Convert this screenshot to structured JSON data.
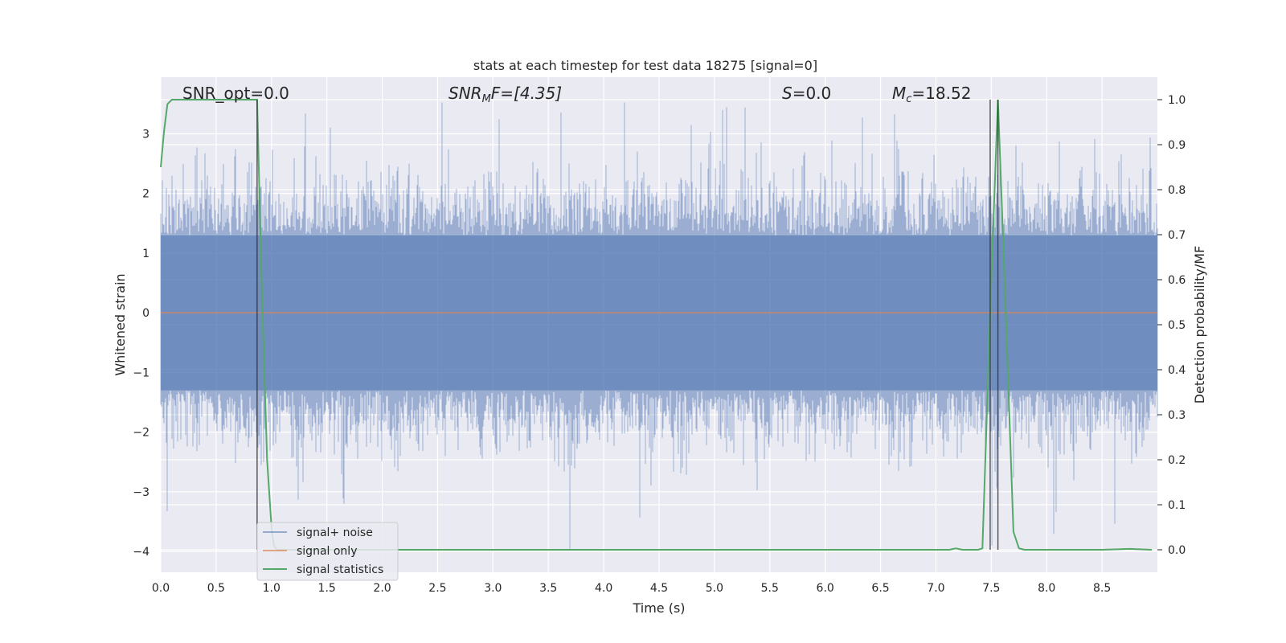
{
  "chart_data": {
    "type": "line",
    "title": "stats at each timestep for test data 18275 [signal=0]",
    "xlabel": "Time (s)",
    "ylabel": "Whitened strain",
    "y2label": "Detection probability/MF",
    "xlim": [
      0.0,
      9.0
    ],
    "ylim": [
      -4.35,
      3.95
    ],
    "y2lim": [
      -0.05,
      1.05
    ],
    "x_ticks": [
      "0.0",
      "0.5",
      "1.0",
      "1.5",
      "2.0",
      "2.5",
      "3.0",
      "3.5",
      "4.0",
      "4.5",
      "5.0",
      "5.5",
      "6.0",
      "6.5",
      "7.0",
      "7.5",
      "8.0",
      "8.5"
    ],
    "y_ticks": [
      "3",
      "2",
      "1",
      "0",
      "−1",
      "−2",
      "−3",
      "−4"
    ],
    "y2_ticks": [
      "1.0",
      "0.9",
      "0.8",
      "0.7",
      "0.6",
      "0.5",
      "0.4",
      "0.3",
      "0.2",
      "0.1",
      "0.0"
    ],
    "grid": true,
    "legend_placement": "lower-left",
    "legend": [
      "signal+ noise",
      "signal only",
      "signal statistics"
    ],
    "annotations": {
      "snr_opt": "SNR_opt=0.0",
      "snr_mf_base": "SNR",
      "snr_mf_sub": "M",
      "snr_mf_rest": "F=[4.35]",
      "s_var": "S",
      "s_rest": "=0.0",
      "mc_var": "M",
      "mc_sub": "c",
      "mc_rest": "=18.52"
    },
    "series": [
      {
        "name": "signal+ noise",
        "axis": "left",
        "style": "noise-band",
        "x_range": [
          0.0,
          9.0
        ],
        "core_amplitude": 1.3,
        "peak_max": 3.6,
        "peak_min": -4.0,
        "color": "#4c72b0"
      },
      {
        "name": "signal only",
        "axis": "left",
        "x": [
          0.0,
          9.0
        ],
        "y": [
          0.0,
          0.0
        ],
        "color": "#dd8452"
      },
      {
        "name": "signal statistics",
        "axis": "right",
        "color": "#55a868",
        "x": [
          0.0,
          0.03,
          0.06,
          0.1,
          0.15,
          0.2,
          0.3,
          0.5,
          0.7,
          0.8,
          0.87,
          0.91,
          0.96,
          1.0,
          1.02,
          1.05,
          1.2,
          2.0,
          4.0,
          6.0,
          7.0,
          7.12,
          7.18,
          7.24,
          7.3,
          7.38,
          7.42,
          7.5,
          7.56,
          7.62,
          7.7,
          7.75,
          7.8,
          8.0,
          8.5,
          8.75,
          8.95
        ],
        "y": [
          0.85,
          0.93,
          0.99,
          1.0,
          1.0,
          1.0,
          1.0,
          1.0,
          1.0,
          1.0,
          1.0,
          0.6,
          0.2,
          0.05,
          0.01,
          0.0,
          0.0,
          0.0,
          0.0,
          0.0,
          0.0,
          0.0,
          0.003,
          0.0,
          0.0,
          0.0,
          0.003,
          0.6,
          1.0,
          0.6,
          0.04,
          0.003,
          0.0,
          0.0,
          0.0,
          0.002,
          0.0
        ]
      }
    ],
    "vertical_lines": [
      0.87,
      7.49,
      7.56
    ],
    "colors": {
      "plot_bg": "#eaeaf2",
      "grid": "#ffffff",
      "noise": "#4c72b0",
      "signal": "#dd8452",
      "stats": "#55a868",
      "vline": "#333333"
    }
  }
}
